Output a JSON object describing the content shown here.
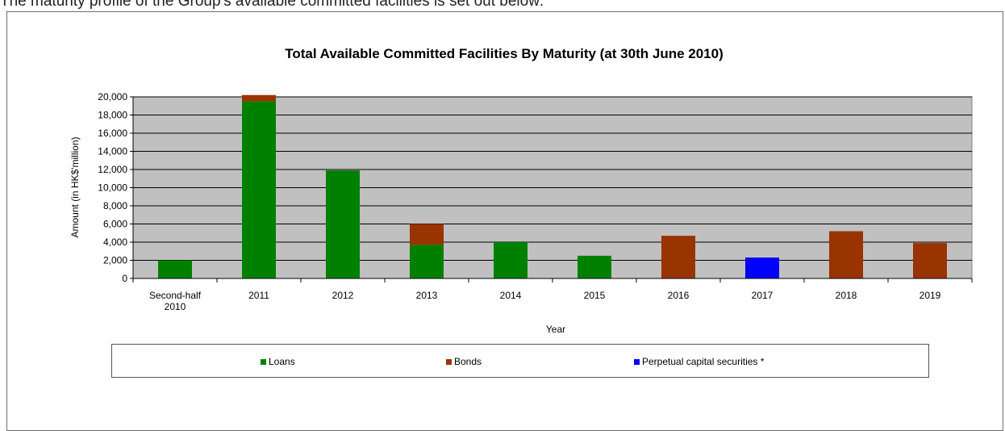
{
  "intro_text": "The maturity profile of the Group's available committed facilities is set out below:",
  "chart_data": {
    "type": "bar",
    "stacked": true,
    "title": "Total Available Committed Facilities By Maturity (at 30th June 2010)",
    "xlabel": "Year",
    "ylabel": "Amount (in HK$'million)",
    "ylim": [
      0,
      20000
    ],
    "yticks": [
      "0",
      "2,000",
      "4,000",
      "6,000",
      "8,000",
      "10,000",
      "12,000",
      "14,000",
      "16,000",
      "18,000",
      "20,000"
    ],
    "categories": [
      "Second-half 2010",
      "2011",
      "2012",
      "2013",
      "2014",
      "2015",
      "2016",
      "2017",
      "2018",
      "2019"
    ],
    "category_lines": [
      [
        "Second-half",
        "2010"
      ],
      [
        "2011"
      ],
      [
        "2012"
      ],
      [
        "2013"
      ],
      [
        "2014"
      ],
      [
        "2015"
      ],
      [
        "2016"
      ],
      [
        "2017"
      ],
      [
        "2018"
      ],
      [
        "2019"
      ]
    ],
    "series": [
      {
        "name": "Loans",
        "color": "#008000",
        "values": [
          2000,
          19500,
          11900,
          3700,
          4000,
          2500,
          0,
          0,
          0,
          0
        ]
      },
      {
        "name": "Bonds",
        "color": "#993300",
        "values": [
          0,
          700,
          0,
          2300,
          0,
          0,
          4700,
          0,
          5200,
          3900
        ]
      },
      {
        "name": "Perpetual capital securities *",
        "color": "#0000ff",
        "values": [
          0,
          0,
          0,
          0,
          0,
          0,
          0,
          2300,
          0,
          0
        ]
      }
    ],
    "grid": true,
    "plot_background": "#c0c0c0",
    "legend_position": "bottom"
  }
}
